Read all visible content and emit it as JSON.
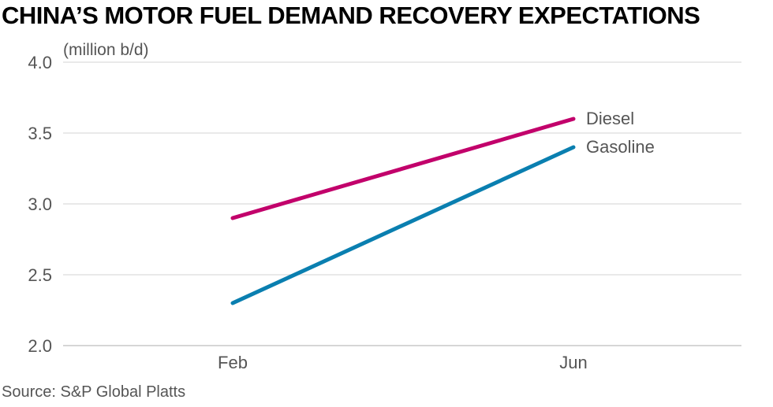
{
  "header": {
    "title": "CHINA’S MOTOR FUEL DEMAND RECOVERY EXPECTATIONS"
  },
  "footer": {
    "source": "Source: S&P Global Platts"
  },
  "chart_data": {
    "type": "line",
    "title": "CHINA’S MOTOR FUEL DEMAND RECOVERY EXPECTATIONS",
    "ylabel": "(million b/d)",
    "xlabel": "",
    "categories": [
      "Feb",
      "Jun"
    ],
    "ylim": [
      2.0,
      4.0
    ],
    "yticks": [
      "4.0",
      "3.5",
      "3.0",
      "2.5",
      "2.0"
    ],
    "grid": true,
    "legend": "inline-right",
    "series": [
      {
        "name": "Diesel",
        "values": [
          2.9,
          3.6
        ],
        "color": "#c2006b"
      },
      {
        "name": "Gasoline",
        "values": [
          2.3,
          3.4
        ],
        "color": "#0a7fb0"
      }
    ]
  }
}
